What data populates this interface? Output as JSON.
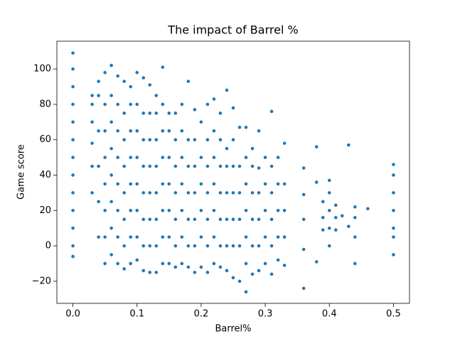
{
  "chart_data": {
    "type": "scatter",
    "title": "The impact of Barrel %",
    "x_label": "Barrel%",
    "y_label": "Game score",
    "color": "#1f77b4",
    "xlim": [
      -0.025,
      0.525
    ],
    "ylim": [
      -32.5,
      115.7
    ],
    "xticks": [
      {
        "value": 0,
        "label": "0.0"
      },
      0.1,
      0.2,
      0.3,
      0.4,
      0.5
    ],
    "yticks": [
      {
        "value": -20,
        "label": "−20"
      },
      0,
      20,
      40,
      60,
      80,
      100
    ],
    "x": [
      0,
      0,
      0,
      0,
      0,
      0,
      0,
      0,
      0,
      0,
      0,
      0,
      0,
      0.03,
      0.03,
      0.03,
      0.03,
      0.03,
      0.03,
      0.04,
      0.04,
      0.04,
      0.04,
      0.04,
      0.04,
      0.05,
      0.05,
      0.05,
      0.05,
      0.05,
      0.05,
      0.05,
      0.05,
      0.06,
      0.06,
      0.06,
      0.06,
      0.06,
      0.06,
      0.06,
      0.06,
      0.07,
      0.07,
      0.07,
      0.07,
      0.07,
      0.07,
      0.07,
      0.07,
      0.08,
      0.08,
      0.08,
      0.08,
      0.08,
      0.08,
      0.08,
      0.08,
      0.09,
      0.09,
      0.09,
      0.09,
      0.09,
      0.09,
      0.09,
      0.09,
      0.1,
      0.1,
      0.1,
      0.1,
      0.1,
      0.1,
      0.1,
      0.1,
      0.11,
      0.11,
      0.11,
      0.11,
      0.11,
      0.11,
      0.11,
      0.11,
      0.12,
      0.12,
      0.12,
      0.12,
      0.12,
      0.12,
      0.12,
      0.12,
      0.13,
      0.13,
      0.13,
      0.13,
      0.13,
      0.13,
      0.13,
      0.13,
      0.14,
      0.14,
      0.14,
      0.14,
      0.14,
      0.14,
      0.14,
      0.14,
      0.15,
      0.15,
      0.15,
      0.15,
      0.15,
      0.15,
      0.15,
      0.16,
      0.16,
      0.16,
      0.16,
      0.16,
      0.16,
      0.16,
      0.17,
      0.17,
      0.17,
      0.17,
      0.17,
      0.17,
      0.17,
      0.18,
      0.18,
      0.18,
      0.18,
      0.18,
      0.18,
      0.18,
      0.19,
      0.19,
      0.19,
      0.19,
      0.19,
      0.19,
      0.19,
      0.2,
      0.2,
      0.2,
      0.2,
      0.2,
      0.2,
      0.21,
      0.21,
      0.21,
      0.21,
      0.21,
      0.21,
      0.21,
      0.22,
      0.22,
      0.22,
      0.22,
      0.22,
      0.22,
      0.22,
      0.23,
      0.23,
      0.23,
      0.23,
      0.23,
      0.23,
      0.23,
      0.24,
      0.24,
      0.24,
      0.24,
      0.24,
      0.24,
      0.24,
      0.25,
      0.25,
      0.25,
      0.25,
      0.25,
      0.25,
      0.25,
      0.26,
      0.26,
      0.26,
      0.26,
      0.26,
      0.26,
      0.27,
      0.27,
      0.27,
      0.27,
      0.27,
      0.27,
      0.27,
      0.28,
      0.28,
      0.28,
      0.28,
      0.28,
      0.28,
      0.29,
      0.29,
      0.29,
      0.29,
      0.29,
      0.29,
      0.3,
      0.3,
      0.3,
      0.3,
      0.3,
      0.31,
      0.31,
      0.31,
      0.31,
      0.31,
      0.31,
      0.32,
      0.32,
      0.32,
      0.32,
      0.32,
      0.33,
      0.33,
      0.33,
      0.33,
      0.33,
      0.36,
      0.36,
      0.36,
      0.36,
      0.36,
      0.38,
      0.38,
      0.38,
      0.39,
      0.39,
      0.39,
      0.4,
      0.4,
      0.4,
      0.4,
      0.4,
      0.41,
      0.41,
      0.41,
      0.42,
      0.43,
      0.43,
      0.44,
      0.44,
      0.44,
      0.44,
      0.46,
      0.5,
      0.5,
      0.5,
      0.5,
      0.5,
      0.5,
      0.5
    ],
    "values": [
      -6,
      0,
      10,
      20,
      30,
      40,
      50,
      60,
      70,
      80,
      90,
      100,
      109,
      30,
      45,
      58,
      70,
      80,
      85,
      5,
      25,
      45,
      65,
      85,
      93,
      -10,
      5,
      20,
      35,
      50,
      65,
      80,
      98,
      -5,
      10,
      25,
      40,
      55,
      70,
      85,
      102,
      -10,
      5,
      20,
      35,
      50,
      65,
      80,
      96,
      -13,
      0,
      15,
      30,
      45,
      60,
      75,
      93,
      -10,
      5,
      20,
      35,
      50,
      65,
      80,
      90,
      -8,
      5,
      20,
      35,
      50,
      65,
      80,
      98,
      -14,
      0,
      15,
      30,
      45,
      60,
      75,
      95,
      -15,
      0,
      15,
      30,
      45,
      60,
      75,
      91,
      -15,
      0,
      15,
      30,
      45,
      60,
      75,
      85,
      -10,
      5,
      20,
      35,
      50,
      65,
      80,
      101,
      -10,
      5,
      20,
      35,
      50,
      65,
      75,
      -12,
      0,
      15,
      30,
      45,
      60,
      75,
      -10,
      5,
      20,
      35,
      50,
      65,
      80,
      -12,
      0,
      15,
      30,
      45,
      60,
      93,
      -15,
      0,
      15,
      30,
      45,
      60,
      77,
      -12,
      5,
      20,
      35,
      50,
      70,
      -15,
      0,
      15,
      30,
      45,
      60,
      80,
      -10,
      5,
      20,
      35,
      50,
      65,
      83,
      -12,
      0,
      15,
      30,
      45,
      60,
      75,
      -14,
      0,
      15,
      30,
      45,
      55,
      88,
      -18,
      0,
      15,
      30,
      45,
      60,
      78,
      -20,
      0,
      15,
      30,
      45,
      67,
      -26,
      -10,
      5,
      20,
      35,
      50,
      67,
      -16,
      0,
      15,
      30,
      45,
      55,
      -14,
      0,
      15,
      30,
      44,
      65,
      -10,
      5,
      20,
      35,
      50,
      -16,
      0,
      15,
      30,
      45,
      76,
      -8,
      5,
      20,
      35,
      50,
      -11,
      5,
      20,
      35,
      58,
      -24,
      -2,
      15,
      29,
      44,
      -9,
      36,
      56,
      9,
      16,
      25,
      0,
      10,
      20,
      30,
      37,
      9,
      16,
      23,
      17,
      11,
      57,
      -10,
      5,
      16,
      22,
      21,
      -5,
      5,
      10,
      20,
      30,
      40,
      46
    ]
  }
}
